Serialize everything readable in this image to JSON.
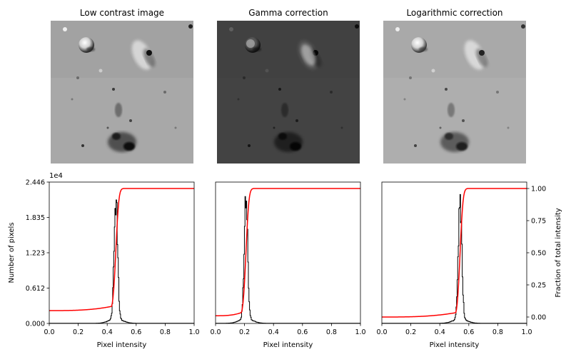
{
  "panels": [
    {
      "title": "Low contrast image"
    },
    {
      "title": "Gamma correction"
    },
    {
      "title": "Logarithmic correction"
    }
  ],
  "chart_data": [
    {
      "type": "histogram",
      "xlabel": "Pixel intensity",
      "ylabel": "Number of pixels",
      "y2label": "Fraction of total intensity",
      "y_offset_label": "1e4",
      "xlim": [
        0,
        1
      ],
      "ylim": [
        0,
        24460
      ],
      "y2lim": [
        -0.05,
        1.05
      ],
      "x_ticks": [
        "0.0",
        "0.2",
        "0.4",
        "0.6",
        "0.8",
        "1.0"
      ],
      "y_ticks": [
        "0.000",
        "0.612",
        "1.223",
        "1.835",
        "2.446"
      ],
      "y2_ticks": [
        "0.00",
        "0.25",
        "0.50",
        "0.75",
        "1.00"
      ],
      "hist_color": "#000000",
      "cdf_color": "#ff0000",
      "histograms": [
        {
          "panel": "Low contrast image",
          "peak_intensity": 0.46,
          "peak_count": 23500,
          "cdf_start": 0.05
        },
        {
          "panel": "Gamma correction",
          "peak_intensity": 0.21,
          "peak_count": 23500,
          "cdf_start": 0.01
        },
        {
          "panel": "Logarithmic correction",
          "peak_intensity": 0.54,
          "peak_count": 23500,
          "cdf_start": 0.0
        }
      ]
    }
  ]
}
